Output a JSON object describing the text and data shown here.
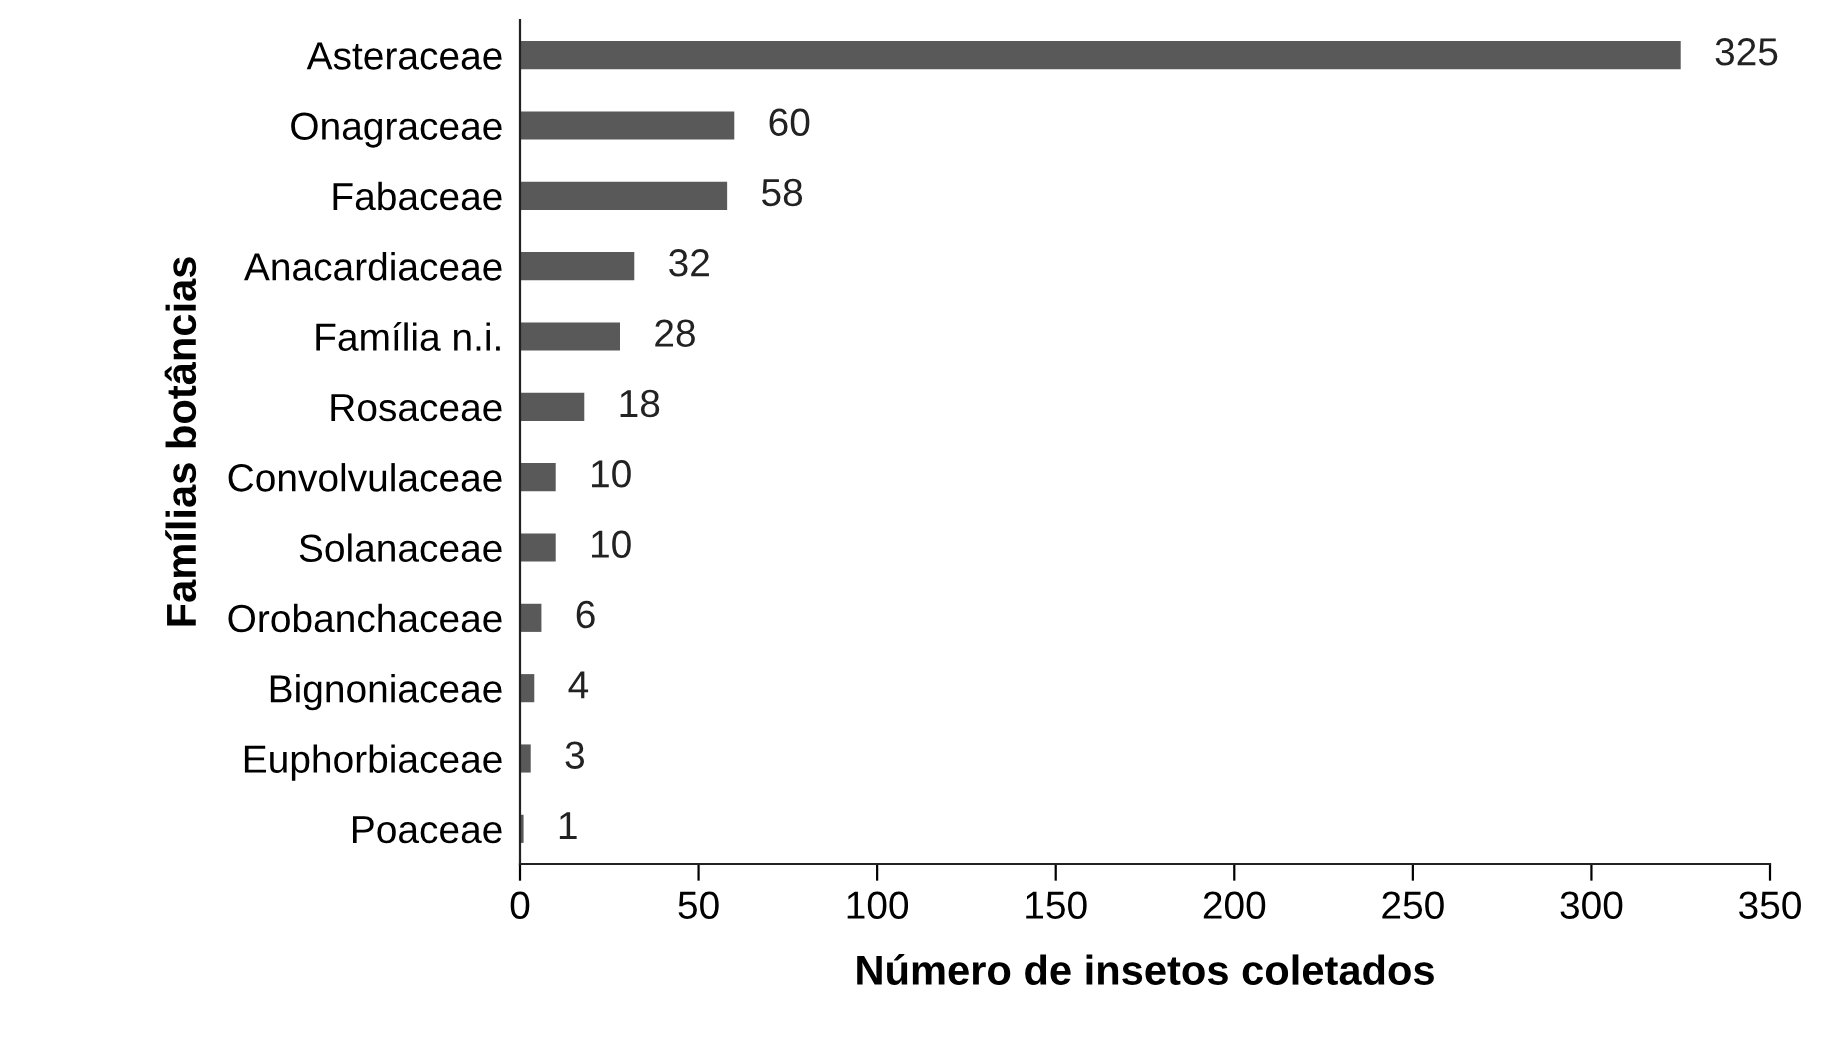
{
  "chart_data": {
    "type": "bar",
    "orientation": "horizontal",
    "xlabel": "Número de insetos coletados",
    "ylabel": "Famílias botâncias",
    "categories": [
      "Asteraceae",
      "Onagraceae",
      "Fabaceae",
      "Anacardiaceae",
      "Família n.i.",
      "Rosaceae",
      "Convolvulaceae",
      "Solanaceae",
      "Orobanchaceae",
      "Bignoniaceae",
      "Euphorbiaceae",
      "Poaceae"
    ],
    "values": [
      325,
      60,
      58,
      32,
      28,
      18,
      10,
      10,
      6,
      4,
      3,
      1
    ],
    "color": "#595959",
    "xlim": [
      0,
      350
    ],
    "xticks": [
      0,
      50,
      100,
      150,
      200,
      250,
      300,
      350
    ],
    "data_labels": true,
    "grid": false
  }
}
